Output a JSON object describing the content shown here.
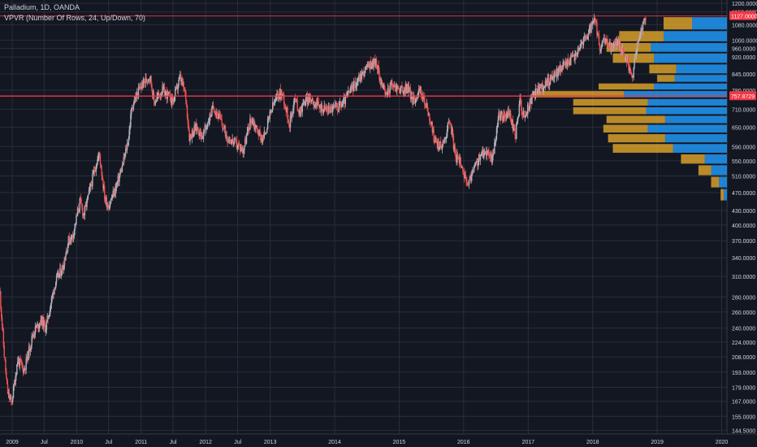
{
  "header": {
    "symbol_line": "Palladium, 1D, OANDA",
    "indicator_line": "VPVR (Number Of Rows, 24, Up/Down, 70)"
  },
  "colors": {
    "background": "#131722",
    "grid": "#2a2e39",
    "axis_text": "#d1d4dc",
    "candle_up": "#b2b5be",
    "candle_down": "#ef5350",
    "profile_up": "#2196f3",
    "profile_down": "#e3a72a",
    "price_line": "#f23645"
  },
  "chart_data": {
    "type": "candlestick",
    "title": "Palladium, 1D, OANDA",
    "indicator": "VPVR (Number Of Rows, 24, Up/Down, 70)",
    "grid": true,
    "y_axis": {
      "scale": "log",
      "range": [
        142,
        1220
      ],
      "ticks": [
        "1200.0000",
        "1150.0000",
        "1080.0000",
        "1000.0000",
        "960.0000",
        "920.0000",
        "845.0000",
        "780.0000",
        "710.0000",
        "650.0000",
        "590.0000",
        "550.0000",
        "510.0000",
        "470.0000",
        "430.0000",
        "400.0000",
        "370.0000",
        "340.0000",
        "310.0000",
        "280.0000",
        "260.0000",
        "240.0000",
        "224.0000",
        "208.0000",
        "193.0000",
        "179.0000",
        "167.0000",
        "155.0000",
        "144.5000"
      ]
    },
    "x_axis": {
      "range": [
        "2008-10-24",
        "2020-01-31"
      ],
      "labels": [
        {
          "text": "2009",
          "date": "2009-01-01"
        },
        {
          "text": "Jul",
          "date": "2009-07-01"
        },
        {
          "text": "2010",
          "date": "2010-01-01"
        },
        {
          "text": "Jul",
          "date": "2010-07-01"
        },
        {
          "text": "2011",
          "date": "2011-01-01"
        },
        {
          "text": "Jul",
          "date": "2011-07-01"
        },
        {
          "text": "2012",
          "date": "2012-01-01"
        },
        {
          "text": "Jul",
          "date": "2012-07-01"
        },
        {
          "text": "2013",
          "date": "2013-01-01"
        },
        {
          "text": "2014",
          "date": "2014-01-01"
        },
        {
          "text": "2015",
          "date": "2015-01-01"
        },
        {
          "text": "2016",
          "date": "2016-01-01"
        },
        {
          "text": "2017",
          "date": "2017-01-01"
        },
        {
          "text": "2018",
          "date": "2018-01-01"
        },
        {
          "text": "2019",
          "date": "2019-01-01"
        },
        {
          "text": "2020",
          "date": "2020-01-01"
        }
      ]
    },
    "price_path": [
      [
        "2008-10-24",
        285
      ],
      [
        "2008-11-15",
        215
      ],
      [
        "2008-12-05",
        175
      ],
      [
        "2008-12-28",
        165
      ],
      [
        "2009-02-01",
        205
      ],
      [
        "2009-03-10",
        195
      ],
      [
        "2009-05-01",
        235
      ],
      [
        "2009-06-15",
        250
      ],
      [
        "2009-07-10",
        240
      ],
      [
        "2009-09-01",
        300
      ],
      [
        "2009-10-15",
        325
      ],
      [
        "2009-11-15",
        370
      ],
      [
        "2009-12-10",
        380
      ],
      [
        "2010-01-20",
        450
      ],
      [
        "2010-02-10",
        420
      ],
      [
        "2010-04-20",
        540
      ],
      [
        "2010-05-10",
        570
      ],
      [
        "2010-06-10",
        455
      ],
      [
        "2010-07-01",
        440
      ],
      [
        "2010-08-10",
        480
      ],
      [
        "2010-09-20",
        540
      ],
      [
        "2010-10-20",
        610
      ],
      [
        "2010-11-10",
        720
      ],
      [
        "2010-12-20",
        780
      ],
      [
        "2011-01-15",
        810
      ],
      [
        "2011-02-20",
        840
      ],
      [
        "2011-03-15",
        735
      ],
      [
        "2011-05-01",
        780
      ],
      [
        "2011-06-01",
        760
      ],
      [
        "2011-07-01",
        740
      ],
      [
        "2011-08-10",
        830
      ],
      [
        "2011-09-10",
        760
      ],
      [
        "2011-10-01",
        620
      ],
      [
        "2011-11-10",
        650
      ],
      [
        "2011-12-15",
        620
      ],
      [
        "2012-02-15",
        720
      ],
      [
        "2012-03-20",
        680
      ],
      [
        "2012-05-01",
        620
      ],
      [
        "2012-06-15",
        600
      ],
      [
        "2012-08-01",
        580
      ],
      [
        "2012-09-15",
        680
      ],
      [
        "2012-10-20",
        640
      ],
      [
        "2012-11-20",
        610
      ],
      [
        "2013-01-15",
        720
      ],
      [
        "2013-02-20",
        770
      ],
      [
        "2013-03-15",
        760
      ],
      [
        "2013-04-20",
        660
      ],
      [
        "2013-05-20",
        750
      ],
      [
        "2013-06-15",
        700
      ],
      [
        "2013-07-15",
        740
      ],
      [
        "2013-08-20",
        750
      ],
      [
        "2013-10-01",
        720
      ],
      [
        "2013-11-15",
        710
      ],
      [
        "2013-12-31",
        715
      ],
      [
        "2014-02-15",
        730
      ],
      [
        "2014-04-01",
        780
      ],
      [
        "2014-05-20",
        830
      ],
      [
        "2014-07-10",
        880
      ],
      [
        "2014-08-20",
        900
      ],
      [
        "2014-09-15",
        830
      ],
      [
        "2014-10-15",
        760
      ],
      [
        "2014-11-15",
        800
      ],
      [
        "2014-12-20",
        790
      ],
      [
        "2015-01-20",
        780
      ],
      [
        "2015-02-20",
        790
      ],
      [
        "2015-03-20",
        740
      ],
      [
        "2015-05-01",
        780
      ],
      [
        "2015-06-15",
        700
      ],
      [
        "2015-07-20",
        610
      ],
      [
        "2015-08-20",
        590
      ],
      [
        "2015-09-10",
        600
      ],
      [
        "2015-10-15",
        680
      ],
      [
        "2015-11-15",
        560
      ],
      [
        "2015-12-20",
        545
      ],
      [
        "2016-01-20",
        480
      ],
      [
        "2016-02-20",
        520
      ],
      [
        "2016-04-01",
        560
      ],
      [
        "2016-05-15",
        580
      ],
      [
        "2016-06-10",
        550
      ],
      [
        "2016-07-20",
        690
      ],
      [
        "2016-08-20",
        680
      ],
      [
        "2016-09-15",
        700
      ],
      [
        "2016-10-20",
        620
      ],
      [
        "2016-11-15",
        740
      ],
      [
        "2016-12-10",
        680
      ],
      [
        "2017-01-15",
        740
      ],
      [
        "2017-02-20",
        780
      ],
      [
        "2017-03-20",
        790
      ],
      [
        "2017-05-01",
        820
      ],
      [
        "2017-06-20",
        860
      ],
      [
        "2017-08-15",
        900
      ],
      [
        "2017-09-20",
        920
      ],
      [
        "2017-10-15",
        970
      ],
      [
        "2017-11-15",
        1000
      ],
      [
        "2018-01-15",
        1100
      ],
      [
        "2018-02-10",
        960
      ],
      [
        "2018-03-15",
        1000
      ],
      [
        "2018-04-20",
        960
      ],
      [
        "2018-05-20",
        1000
      ],
      [
        "2018-06-15",
        960
      ],
      [
        "2018-07-10",
        900
      ],
      [
        "2018-08-15",
        845
      ],
      [
        "2018-09-15",
        1000
      ],
      [
        "2018-10-10",
        1070
      ],
      [
        "2018-10-28",
        1120
      ]
    ],
    "volume_profile": {
      "rows": [
        {
          "price_low": 1050,
          "price_high": 1125,
          "up": 0.22,
          "down": 0.18
        },
        {
          "price_low": 990,
          "price_high": 1050,
          "up": 0.4,
          "down": 0.28
        },
        {
          "price_low": 940,
          "price_high": 990,
          "up": 0.48,
          "down": 0.28
        },
        {
          "price_low": 890,
          "price_high": 940,
          "up": 0.46,
          "down": 0.26
        },
        {
          "price_low": 845,
          "price_high": 890,
          "up": 0.32,
          "down": 0.17
        },
        {
          "price_low": 810,
          "price_high": 845,
          "up": 0.33,
          "down": 0.11
        },
        {
          "price_low": 780,
          "price_high": 810,
          "up": 0.46,
          "down": 0.35
        },
        {
          "price_low": 750,
          "price_high": 780,
          "up": 0.65,
          "down": 0.58
        },
        {
          "price_low": 720,
          "price_high": 750,
          "up": 0.5,
          "down": 0.47
        },
        {
          "price_low": 690,
          "price_high": 720,
          "up": 0.51,
          "down": 0.46
        },
        {
          "price_low": 660,
          "price_high": 690,
          "up": 0.39,
          "down": 0.37
        },
        {
          "price_low": 630,
          "price_high": 660,
          "up": 0.5,
          "down": 0.28
        },
        {
          "price_low": 600,
          "price_high": 630,
          "up": 0.39,
          "down": 0.36
        },
        {
          "price_low": 570,
          "price_high": 600,
          "up": 0.34,
          "down": 0.38
        },
        {
          "price_low": 540,
          "price_high": 570,
          "up": 0.14,
          "down": 0.15
        },
        {
          "price_low": 510,
          "price_high": 540,
          "up": 0.1,
          "down": 0.08
        },
        {
          "price_low": 480,
          "price_high": 510,
          "up": 0.05,
          "down": 0.05
        },
        {
          "price_low": 450,
          "price_high": 480,
          "up": 0.02,
          "down": 0.02
        }
      ]
    },
    "last_price": {
      "value": 1127,
      "label": "1127.0000"
    },
    "marker_price": {
      "value": 757.8729,
      "label": "757.8729"
    }
  }
}
